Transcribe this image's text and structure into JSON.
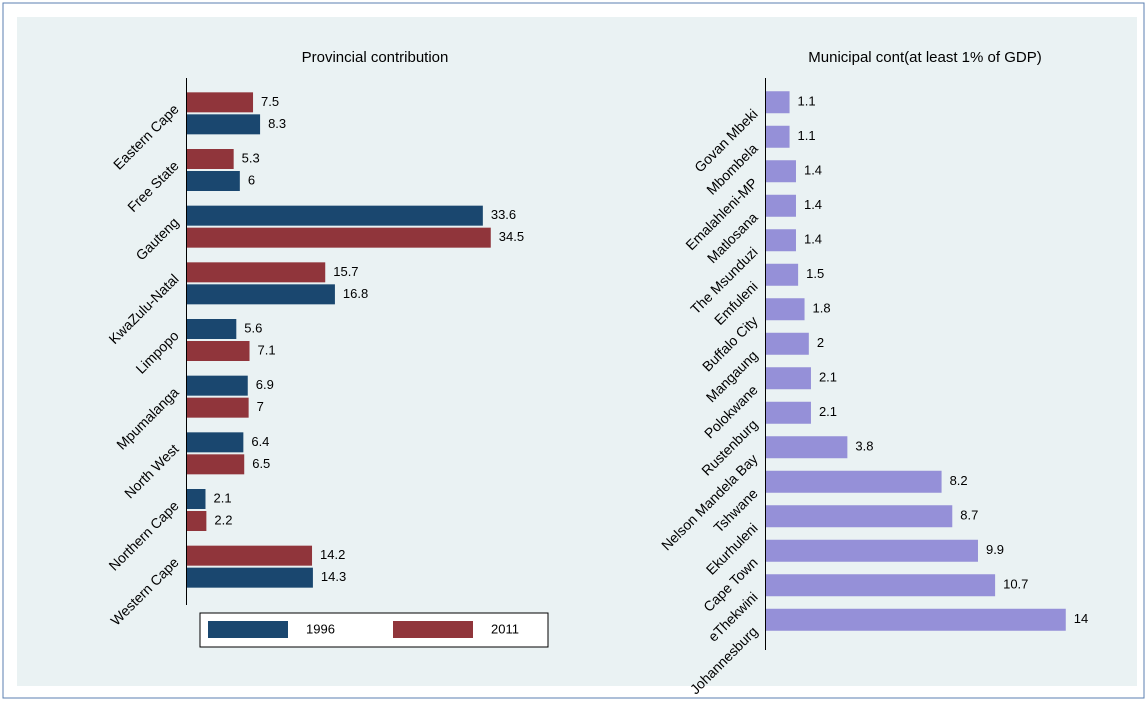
{
  "chart_data": [
    {
      "type": "hbar",
      "title": "Provincial contribution",
      "categories": [
        "Eastern Cape",
        "Free State",
        "Gauteng",
        "KwaZulu-Natal",
        "Limpopo",
        "Mpumalanga",
        "North West",
        "Northern Cape",
        "Western Cape"
      ],
      "series": [
        {
          "name": "1996",
          "color": "#1a476f",
          "values": [
            8.3,
            6,
            33.6,
            16.8,
            5.6,
            6.9,
            6.4,
            2.1,
            14.3
          ]
        },
        {
          "name": "2011",
          "color": "#90353b",
          "values": [
            7.5,
            5.3,
            34.5,
            15.7,
            7.1,
            7,
            6.5,
            2.2,
            14.2
          ]
        }
      ],
      "xlim": [
        0,
        41
      ],
      "legend": "bottom"
    },
    {
      "type": "hbar",
      "title": "Municipal cont(at least 1% of GDP)",
      "categories": [
        "Govan Mbeki",
        "Mbombela",
        "Emalahleni-MP",
        "Matlosana",
        "The Msunduzi",
        "Emfuleni",
        "Buffalo City",
        "Mangaung",
        "Polokwane",
        "Rustenburg",
        "Nelson Mandela Bay",
        "Tshwane",
        "Ekurhuleni",
        "Cape Town",
        "eThekwini",
        "Johannesburg"
      ],
      "values": [
        1.1,
        1.1,
        1.4,
        1.4,
        1.4,
        1.5,
        1.8,
        2,
        2.1,
        2.1,
        3.8,
        8.2,
        8.7,
        9.9,
        10.7,
        14
      ],
      "color": "#9590d8",
      "xlim": [
        0,
        17
      ]
    }
  ]
}
